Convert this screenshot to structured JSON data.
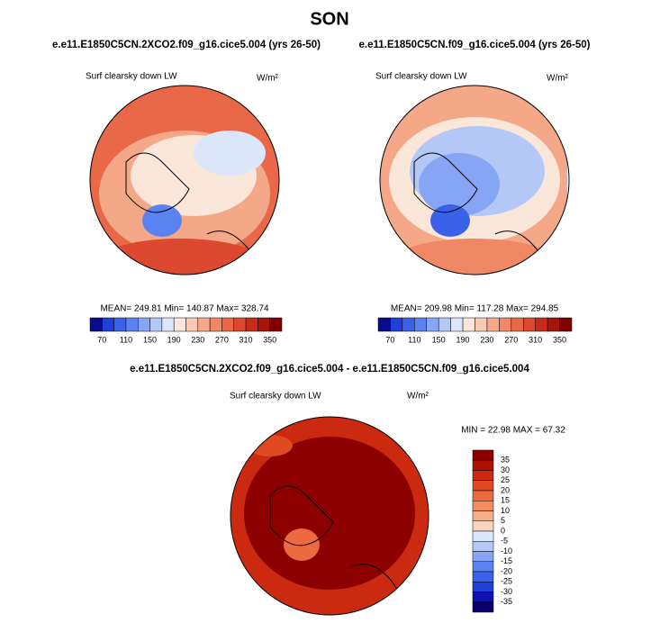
{
  "title": "SON",
  "panels": [
    {
      "header": "e.e11.E1850C5CN.2XCO2.f09_g16.cice5.004 (yrs 26-50)",
      "field": "Surf clearsky down LW",
      "units": "W/m²",
      "stats": "MEAN= 249.81  Min= 140.87  Max= 328.74"
    },
    {
      "header": "e.e11.E1850C5CN.f09_g16.cice5.004 (yrs 26-50)",
      "field": "Surf clearsky down LW",
      "units": "W/m²",
      "stats": "MEAN= 209.98  Min= 117.28  Max= 294.85"
    }
  ],
  "colorbar": {
    "labels": [
      70,
      110,
      150,
      190,
      230,
      270,
      310,
      350
    ],
    "colors": [
      "#0a0a8c",
      "#1f3fd6",
      "#3a62e8",
      "#5a82f0",
      "#86a6f5",
      "#b4c8f8",
      "#dce6fb",
      "#fbe6da",
      "#f8c8b0",
      "#f5a888",
      "#f08866",
      "#e86848",
      "#dc4830",
      "#c82a1a",
      "#a81408",
      "#7e0000"
    ]
  },
  "diff": {
    "header": "e.e11.E1850C5CN.2XCO2.f09_g16.cice5.004 - e.e11.E1850C5CN.f09_g16.cice5.004",
    "field": "Surf clearsky down LW",
    "units": "W/m²",
    "stats": "MIN =  22.98 MAX =  67.32",
    "colorbar": {
      "labels": [
        35,
        30,
        25,
        20,
        15,
        10,
        5,
        0,
        -5,
        -10,
        -15,
        -20,
        -25,
        -30,
        -35
      ],
      "colors": [
        "#8c0000",
        "#b01000",
        "#cc2a10",
        "#e04a22",
        "#ec6a40",
        "#f48c62",
        "#f8ae8a",
        "#fbd4bc",
        "#dce8fb",
        "#b4c8f8",
        "#86a6f5",
        "#5a82f0",
        "#3a62e8",
        "#1f3fd6",
        "#1010b0",
        "#08006e"
      ]
    }
  }
}
